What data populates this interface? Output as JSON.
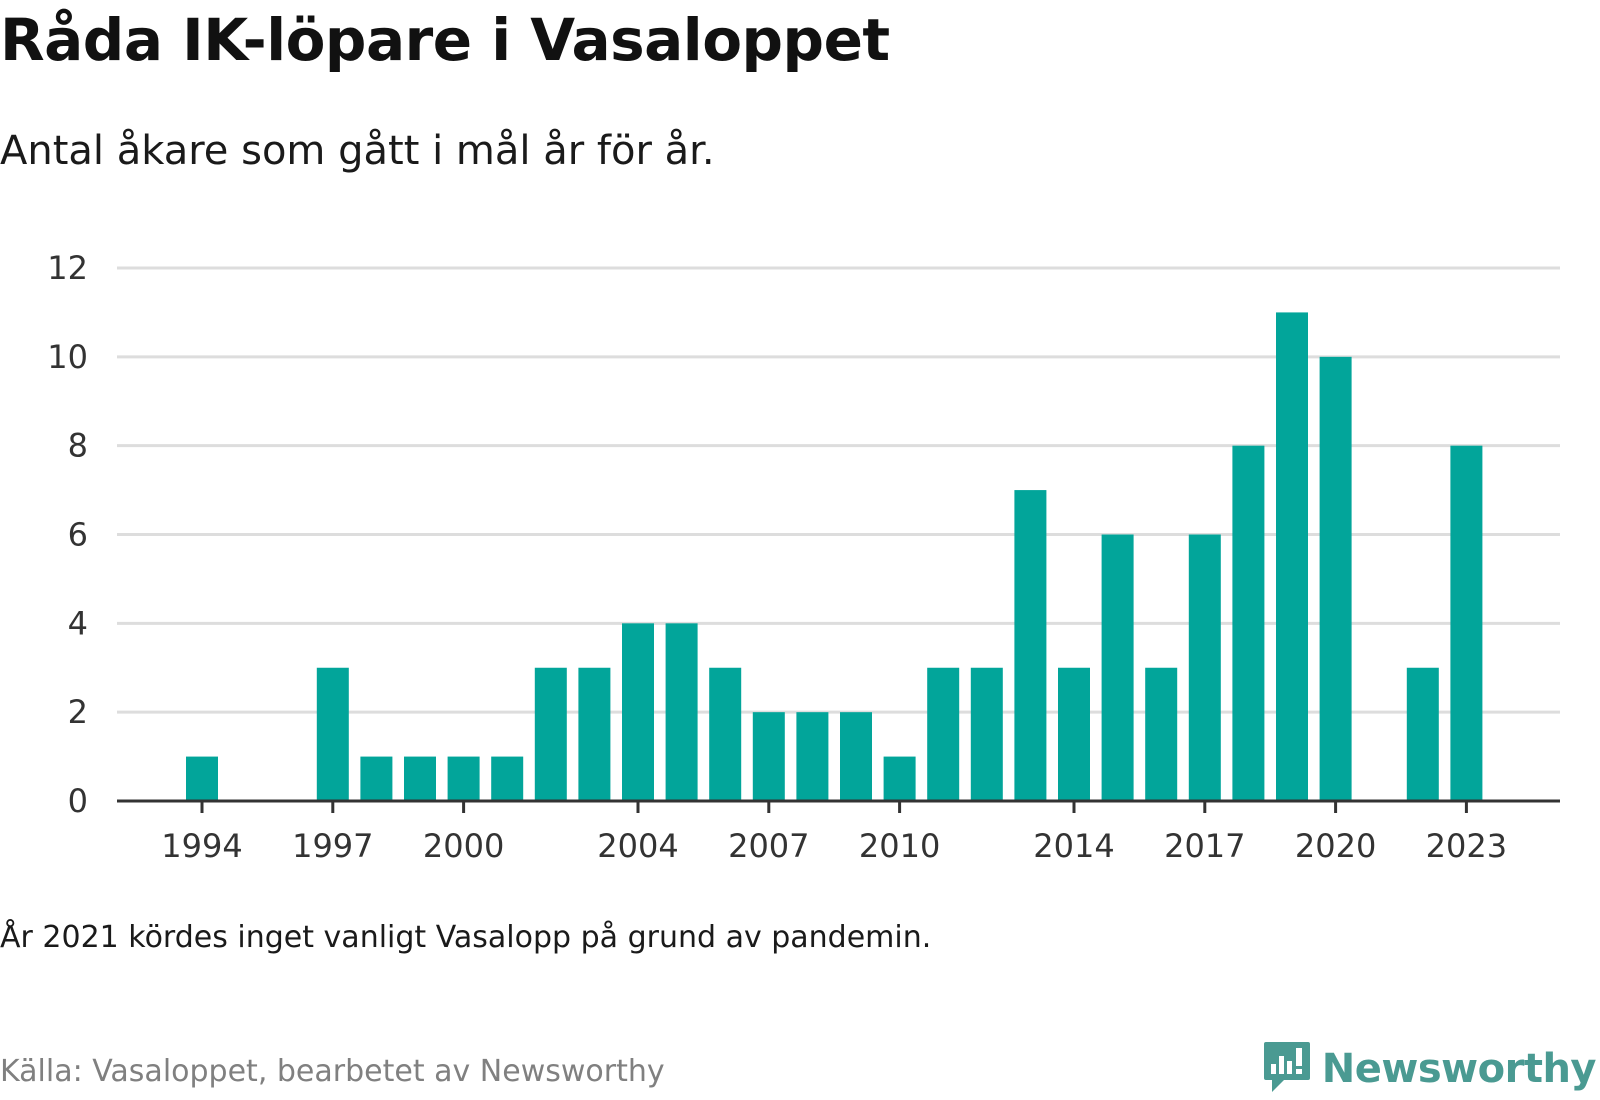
{
  "title": "Råda IK-löpare i Vasaloppet",
  "subtitle": "Antal åkare som gått i mål år för år.",
  "note": "År 2021 kördes inget vanligt Vasalopp på grund av pandemin.",
  "source": "Källa: Vasaloppet, bearbetet av Newsworthy",
  "brand": {
    "name": "Newsworthy",
    "icon": "newsworthy-logo-icon",
    "color": "#4a9a92"
  },
  "colors": {
    "bar": "#02a59a",
    "grid": "#dddddd",
    "axis": "#333333"
  },
  "chart_data": {
    "type": "bar",
    "x": [
      1994,
      1995,
      1996,
      1997,
      1998,
      1999,
      2000,
      2001,
      2002,
      2003,
      2004,
      2005,
      2006,
      2007,
      2008,
      2009,
      2010,
      2011,
      2012,
      2013,
      2014,
      2015,
      2016,
      2017,
      2018,
      2019,
      2020,
      2021,
      2022,
      2023
    ],
    "values": [
      1,
      0,
      0,
      3,
      1,
      1,
      1,
      1,
      3,
      3,
      4,
      4,
      3,
      2,
      2,
      2,
      1,
      3,
      3,
      7,
      3,
      6,
      3,
      6,
      8,
      11,
      10,
      null,
      3,
      8
    ],
    "x_tick_labels": [
      "1994",
      "1997",
      "2000",
      "2004",
      "2007",
      "2010",
      "2014",
      "2017",
      "2020",
      "2023"
    ],
    "y_ticks": [
      0,
      2,
      4,
      6,
      8,
      10,
      12
    ],
    "ylim": [
      0,
      12
    ],
    "xlabel": "",
    "ylabel": "",
    "grid": true,
    "legend": "none"
  }
}
